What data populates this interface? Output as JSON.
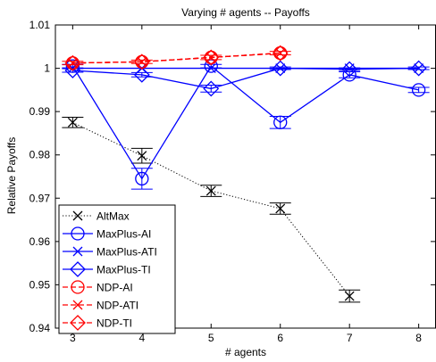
{
  "chart_data": {
    "type": "line",
    "title": "Varying # agents -- Payoffs",
    "xlabel": "# agents",
    "ylabel": "Relative Payoffs",
    "xlim": [
      2.75,
      8.25
    ],
    "ylim": [
      0.94,
      1.01
    ],
    "xticks": [
      "3",
      "4",
      "5",
      "6",
      "7",
      "8"
    ],
    "xtick_values": [
      3,
      4,
      5,
      6,
      7,
      8
    ],
    "yticks": [
      "0.94",
      "0.95",
      "0.96",
      "0.97",
      "0.98",
      "0.99",
      "1",
      "1.01"
    ],
    "ytick_values": [
      0.94,
      0.95,
      0.96,
      0.97,
      0.98,
      0.99,
      1.0,
      1.01
    ],
    "grid": false,
    "legend_position": "bottom-left",
    "series": [
      {
        "name": "AltMax",
        "color": "#000000",
        "line": "dotted",
        "marker": "x",
        "x": [
          3,
          4,
          5,
          6,
          7
        ],
        "y": [
          0.9875,
          0.9798,
          0.9717,
          0.9676,
          0.9474
        ],
        "err": [
          0.0012,
          0.0017,
          0.0013,
          0.0013,
          0.0014
        ]
      },
      {
        "name": "MaxPlus-AI",
        "color": "#0000ff",
        "line": "solid",
        "marker": "o",
        "x": [
          3,
          4,
          5,
          6,
          7,
          8
        ],
        "y": [
          1.0005,
          0.9745,
          1.0005,
          0.9875,
          0.9985,
          0.995
        ],
        "err": [
          0.0004,
          0.0024,
          0.0004,
          0.0014,
          0.0007,
          0.0006
        ]
      },
      {
        "name": "MaxPlus-ATI",
        "color": "#0000ff",
        "line": "solid",
        "marker": "x",
        "x": [
          3,
          4,
          5,
          6,
          7,
          8
        ],
        "y": [
          1.0,
          1.0,
          1.0,
          1.0,
          1.0,
          1.0
        ]
      },
      {
        "name": "MaxPlus-TI",
        "color": "#0000ff",
        "line": "solid",
        "marker": "diamond",
        "x": [
          3,
          4,
          5,
          6,
          7,
          8
        ],
        "y": [
          0.9995,
          0.9985,
          0.9953,
          1.0,
          0.9998,
          1.0
        ],
        "err": [
          0.0004,
          0.0005,
          0.0008,
          0.0003,
          0.0003,
          0.0003
        ]
      },
      {
        "name": "NDP-AI",
        "color": "#ff0000",
        "line": "dashed",
        "marker": "o",
        "x": [
          3,
          4,
          5,
          6
        ],
        "y": [
          1.0012,
          1.0015,
          1.0025,
          1.0035
        ],
        "err": [
          0.0004,
          0.0004,
          0.0005,
          0.0004
        ]
      },
      {
        "name": "NDP-ATI",
        "color": "#ff0000",
        "line": "dashed",
        "marker": "x",
        "x": [
          3,
          4,
          5,
          6
        ],
        "y": [
          1.0012,
          1.0015,
          1.0025,
          1.0035
        ]
      },
      {
        "name": "NDP-TI",
        "color": "#ff0000",
        "line": "dashed",
        "marker": "diamond",
        "x": [
          3,
          4,
          5,
          6
        ],
        "y": [
          1.0012,
          1.0015,
          1.0025,
          1.0035
        ]
      }
    ]
  }
}
